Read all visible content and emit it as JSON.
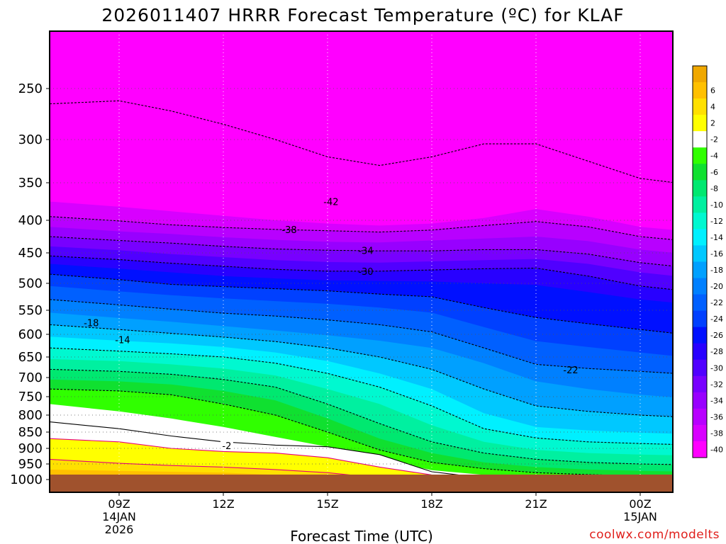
{
  "chart_data": {
    "type": "heatmap",
    "title": "2026011407 HRRR Forecast Temperature (ºC) for KLAF",
    "xlabel": "Forecast Time (UTC)",
    "ylabel": "",
    "credit": "coolwx.com/modelts",
    "y_axis": {
      "units": "hPa",
      "inverted": true,
      "ticks": [
        250,
        300,
        350,
        400,
        450,
        500,
        550,
        600,
        650,
        700,
        750,
        800,
        850,
        900,
        950,
        1000
      ]
    },
    "x_axis": {
      "ticks": [
        {
          "line1": "09Z",
          "line2": "14JAN",
          "line3": "2026"
        },
        {
          "line1": "12Z",
          "line2": "",
          "line3": ""
        },
        {
          "line1": "15Z",
          "line2": "",
          "line3": ""
        },
        {
          "line1": "18Z",
          "line2": "",
          "line3": ""
        },
        {
          "line1": "21Z",
          "line2": "",
          "line3": ""
        },
        {
          "line1": "00Z",
          "line2": "15JAN",
          "line3": ""
        }
      ]
    },
    "grid": true,
    "colorbar": {
      "placement": "right",
      "levels": [
        {
          "label": "",
          "color": "#f0a800"
        },
        {
          "label": "6",
          "color": "#ffc000"
        },
        {
          "label": "4",
          "color": "#ffe000"
        },
        {
          "label": "2",
          "color": "#ffff00"
        },
        {
          "label": "-2",
          "color": "#ffffff"
        },
        {
          "label": "-4",
          "color": "#30ff00"
        },
        {
          "label": "-6",
          "color": "#10e030"
        },
        {
          "label": "-8",
          "color": "#00e870"
        },
        {
          "label": "-10",
          "color": "#00f0a0"
        },
        {
          "label": "-12",
          "color": "#00f8d0"
        },
        {
          "label": "-14",
          "color": "#00f0ff"
        },
        {
          "label": "-16",
          "color": "#00c8ff"
        },
        {
          "label": "-18",
          "color": "#00a0ff"
        },
        {
          "label": "-20",
          "color": "#0080ff"
        },
        {
          "label": "-22",
          "color": "#0060ff"
        },
        {
          "label": "-24",
          "color": "#0040ff"
        },
        {
          "label": "-26",
          "color": "#0010ff"
        },
        {
          "label": "-28",
          "color": "#2800ff"
        },
        {
          "label": "-30",
          "color": "#5000ff"
        },
        {
          "label": "-32",
          "color": "#7800ff"
        },
        {
          "label": "-34",
          "color": "#9800ff"
        },
        {
          "label": "-36",
          "color": "#b800ff"
        },
        {
          "label": "-38",
          "color": "#d800ff"
        },
        {
          "label": "-40",
          "color": "#ff00ff"
        }
      ]
    },
    "ground_color": "#a0522d",
    "contour_labels": [
      {
        "text": "-42",
        "time_hours": 15.1,
        "pressure": 375
      },
      {
        "text": "-38",
        "time_hours": 13.9,
        "pressure": 414
      },
      {
        "text": "-34",
        "time_hours": 16.1,
        "pressure": 446
      },
      {
        "text": "-30",
        "time_hours": 16.1,
        "pressure": 480
      },
      {
        "text": "-22",
        "time_hours": 22.0,
        "pressure": 681
      },
      {
        "text": "-18",
        "time_hours": 8.2,
        "pressure": 576
      },
      {
        "text": "-14",
        "time_hours": 9.1,
        "pressure": 612
      },
      {
        "text": "-2",
        "time_hours": 12.1,
        "pressure": 891
      }
    ],
    "profile": {
      "time_hours": [
        7.0,
        9.0,
        10.5,
        12.0,
        13.5,
        15.0,
        16.5,
        18.0,
        19.5,
        21.0,
        22.5,
        24.0,
        25.0
      ],
      "boundaries": [
        {
          "temp": -42,
          "pressure": [
            265,
            262,
            272,
            285,
            300,
            320,
            330,
            320,
            305,
            305,
            325,
            345,
            350
          ]
        },
        {
          "temp": -40,
          "pressure": [
            375,
            382,
            388,
            394,
            400,
            405,
            408,
            405,
            397,
            385,
            395,
            410,
            415
          ]
        },
        {
          "temp": -38,
          "pressure": [
            395,
            401,
            407,
            411,
            414,
            416,
            418,
            415,
            408,
            402,
            410,
            425,
            430
          ]
        },
        {
          "temp": -36,
          "pressure": [
            410,
            417,
            421,
            426,
            430,
            433,
            434,
            431,
            428,
            425,
            432,
            445,
            450
          ]
        },
        {
          "temp": -34,
          "pressure": [
            425,
            431,
            435,
            440,
            444,
            446,
            447,
            447,
            445,
            445,
            452,
            466,
            472
          ]
        },
        {
          "temp": -32,
          "pressure": [
            440,
            446,
            452,
            457,
            462,
            465,
            466,
            464,
            462,
            460,
            468,
            482,
            488
          ]
        },
        {
          "temp": -30,
          "pressure": [
            455,
            461,
            467,
            472,
            477,
            480,
            480,
            478,
            476,
            475,
            488,
            505,
            512
          ]
        },
        {
          "temp": -28,
          "pressure": [
            468,
            476,
            482,
            488,
            492,
            495,
            496,
            497,
            500,
            503,
            516,
            530,
            536
          ]
        },
        {
          "temp": -26,
          "pressure": [
            485,
            494,
            502,
            506,
            510,
            514,
            520,
            525,
            545,
            565,
            578,
            590,
            598
          ]
        },
        {
          "temp": -24,
          "pressure": [
            505,
            515,
            522,
            528,
            533,
            538,
            545,
            555,
            585,
            615,
            628,
            640,
            648
          ]
        },
        {
          "temp": -22,
          "pressure": [
            530,
            540,
            548,
            556,
            562,
            570,
            580,
            595,
            630,
            668,
            678,
            685,
            690
          ]
        },
        {
          "temp": -20,
          "pressure": [
            555,
            566,
            574,
            583,
            592,
            602,
            614,
            630,
            665,
            710,
            730,
            745,
            752
          ]
        },
        {
          "temp": -18,
          "pressure": [
            580,
            590,
            598,
            606,
            616,
            630,
            650,
            680,
            730,
            775,
            790,
            800,
            805
          ]
        },
        {
          "temp": -16,
          "pressure": [
            605,
            614,
            620,
            628,
            640,
            660,
            690,
            730,
            795,
            835,
            845,
            852,
            855
          ]
        },
        {
          "temp": -14,
          "pressure": [
            630,
            637,
            643,
            650,
            665,
            690,
            725,
            775,
            840,
            868,
            880,
            885,
            888
          ]
        },
        {
          "temp": -12,
          "pressure": [
            655,
            660,
            668,
            678,
            695,
            730,
            770,
            830,
            880,
            905,
            915,
            920,
            922
          ]
        },
        {
          "temp": -10,
          "pressure": [
            680,
            685,
            692,
            705,
            725,
            770,
            825,
            880,
            915,
            935,
            945,
            950,
            952
          ]
        },
        {
          "temp": -8,
          "pressure": [
            705,
            710,
            718,
            735,
            760,
            810,
            870,
            915,
            945,
            960,
            968,
            972,
            974
          ]
        },
        {
          "temp": -6,
          "pressure": [
            730,
            735,
            745,
            770,
            800,
            850,
            905,
            945,
            965,
            978,
            984,
            988,
            990
          ]
        },
        {
          "temp": -4,
          "pressure": [
            770,
            790,
            810,
            835,
            865,
            895,
            935,
            970,
            985,
            993,
            997,
            1000,
            1000
          ]
        },
        {
          "temp": -2,
          "pressure": [
            820,
            840,
            862,
            880,
            890,
            895,
            920,
            975,
            995,
            1000,
            1000,
            1000,
            1000
          ]
        },
        {
          "temp": 2,
          "pressure": [
            870,
            880,
            900,
            910,
            915,
            930,
            960,
            985,
            1000,
            1000,
            1000,
            1000,
            1000
          ]
        },
        {
          "temp": 4,
          "pressure": [
            935,
            948,
            955,
            960,
            968,
            978,
            995,
            1000,
            1000,
            1000,
            1000,
            1000,
            1000
          ]
        },
        {
          "temp": 6,
          "pressure": [
            968,
            972,
            975,
            978,
            985,
            995,
            1000,
            1000,
            1000,
            1000,
            1000,
            1000,
            1000
          ]
        }
      ]
    }
  }
}
